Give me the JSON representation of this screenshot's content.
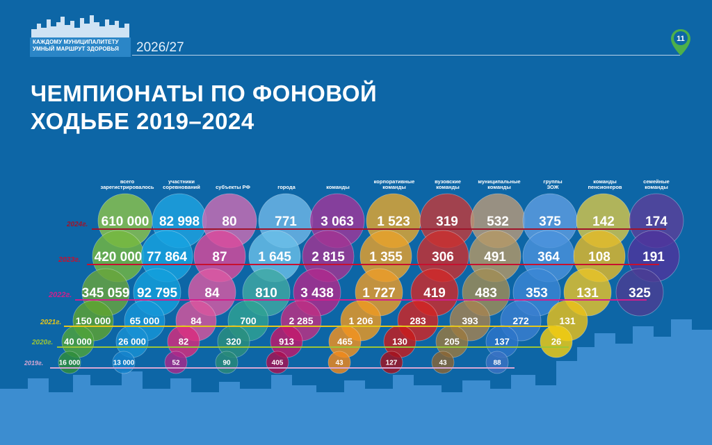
{
  "header": {
    "logo_line1": "КАЖДОМУ МУНИЦИПАЛИТЕТУ",
    "logo_line2": "УМНЫЙ МАРШРУТ ЗДОРОВЬЯ",
    "edition": "2026/27",
    "page_number": "11",
    "title_line1": "ЧЕМПИОНАТЫ ПО ФОНОВОЙ",
    "title_line2": "ХОДЬБЕ 2019–2024"
  },
  "chart_data": {
    "type": "bubble",
    "title": "ЧЕМПИОНАТЫ ПО ФОНОВОЙ ХОДЬБЕ 2019–2024",
    "categories": [
      [
        "всего",
        "зарегистрировалось"
      ],
      [
        "участники",
        "соревнований"
      ],
      [
        "субъекты РФ"
      ],
      [
        "города"
      ],
      [
        "команды"
      ],
      [
        "корпоративные",
        "команды"
      ],
      [
        "вузовские",
        "команды"
      ],
      [
        "муниципальные",
        "команды"
      ],
      [
        "группы",
        "ЗОЖ"
      ],
      [
        "команды",
        "пенсионеров"
      ],
      [
        "семейные",
        "команды"
      ]
    ],
    "series": [
      {
        "name": "2024г.",
        "color": "#a0132a",
        "values": [
          "610 000",
          "82 998",
          "80",
          "771",
          "3 063",
          "1 523",
          "319",
          "532",
          "375",
          "142",
          "174"
        ]
      },
      {
        "name": "2023г.",
        "color": "#c8102e",
        "values": [
          "420 000",
          "77 864",
          "87",
          "1 645",
          "2 815",
          "1 355",
          "306",
          "491",
          "364",
          "108",
          "191"
        ]
      },
      {
        "name": "2022г.",
        "color": "#d21e8c",
        "values": [
          "345 059",
          "92 795",
          "84",
          "810",
          "3 438",
          "1 727",
          "419",
          "483",
          "353",
          "131",
          "325"
        ]
      },
      {
        "name": "2021г.",
        "color": "#e6c619",
        "values": [
          "150 000",
          "65 000",
          "84",
          "700",
          "2 285",
          "1 206",
          "283",
          "393",
          "272",
          "131",
          ""
        ]
      },
      {
        "name": "2020г.",
        "color": "#9cc637",
        "values": [
          "40 000",
          "26 000",
          "82",
          "320",
          "913",
          "465",
          "130",
          "205",
          "137",
          "26",
          ""
        ]
      },
      {
        "name": "2019г.",
        "color": "#d9a8d4",
        "values": [
          "16 000",
          "13 000",
          "52",
          "90",
          "405",
          "43",
          "127",
          "43",
          "88",
          "",
          ""
        ]
      }
    ],
    "palette": {
      "background": "#0d66a6",
      "r2024": [
        "#8cc34a",
        "#1fa3e0",
        "#cc6eb3",
        "#6fb7e6",
        "#a0379a",
        "#e3a72f",
        "#c23b3b",
        "#b79a7a",
        "#5e9ee0",
        "#d4c64a",
        "#5a3f9a"
      ],
      "r2023": [
        "#75b83f",
        "#17a3e0",
        "#d94a9b",
        "#6abfe8",
        "#a23592",
        "#e6a12c",
        "#c9302f",
        "#b49966",
        "#4b93dc",
        "#e2b92a",
        "#4e349c"
      ],
      "r2022": [
        "#69a53c",
        "#13a0dc",
        "#db5aa3",
        "#3fa8a2",
        "#b02a8c",
        "#ea9c2a",
        "#cf2a2a",
        "#a08c55",
        "#3a86d4",
        "#e7c32a",
        "#4a3d92"
      ],
      "r2021": [
        "#5ea430",
        "#1696d8",
        "#d9559c",
        "#2fa292",
        "#c02f82",
        "#ed9a22",
        "#d22423",
        "#a68350",
        "#3b7fcf",
        "#e9c11a",
        ""
      ],
      "r2020": [
        "#4ea33a",
        "#1891d3",
        "#d92c7d",
        "#2b8f7e",
        "#c2186a",
        "#f39220",
        "#c81c1c",
        "#9b7a3f",
        "#2d75c9",
        "#f3cd10",
        ""
      ],
      "r2019": [
        "#2e8d3a",
        "#1582cc",
        "#a8288a",
        "#2a8a78",
        "#a81050",
        "#f2891a",
        "#a4111f",
        "#8a6534",
        "#3a73c3",
        "",
        ""
      ]
    }
  }
}
